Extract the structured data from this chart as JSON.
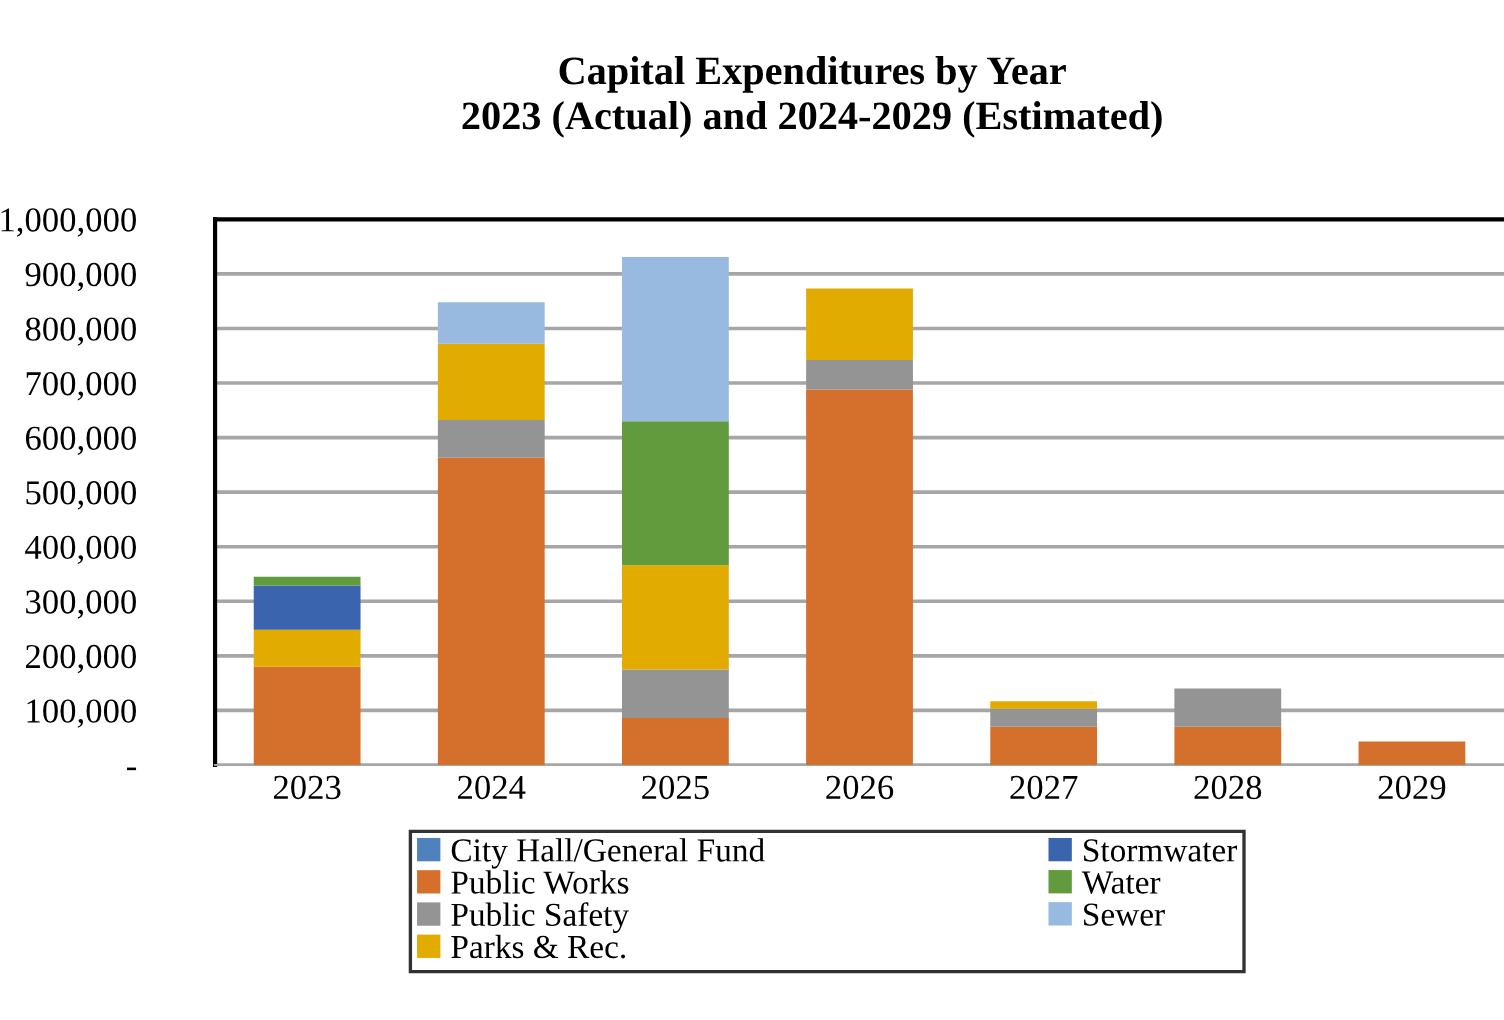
{
  "chart_data": {
    "type": "bar",
    "stacked": true,
    "title": "Capital Expenditures by Year\n2023 (Actual) and 2024-2029 (Estimated)",
    "categories": [
      "2023",
      "2024",
      "2025",
      "2026",
      "2027",
      "2028",
      "2029"
    ],
    "series": [
      {
        "name": "City Hall/General Fund",
        "color": "#4f81bd",
        "values": [
          0,
          0,
          0,
          0,
          0,
          0,
          0
        ]
      },
      {
        "name": "Public Works",
        "color": "#d4702c",
        "values": [
          180000,
          563000,
          86000,
          688000,
          70000,
          70000,
          43000
        ]
      },
      {
        "name": "Public Safety",
        "color": "#949494",
        "values": [
          0,
          69000,
          89000,
          54000,
          33000,
          70000,
          0
        ]
      },
      {
        "name": "Parks & Rec.",
        "color": "#e2ab00",
        "values": [
          68000,
          140000,
          191000,
          131000,
          14000,
          0,
          0
        ]
      },
      {
        "name": "Stormwater",
        "color": "#3a64ae",
        "values": [
          81000,
          0,
          0,
          0,
          0,
          0,
          0
        ]
      },
      {
        "name": "Water",
        "color": "#629a3e",
        "values": [
          16000,
          0,
          264000,
          0,
          0,
          0,
          0
        ]
      },
      {
        "name": "Sewer",
        "color": "#98b9e0",
        "values": [
          0,
          76000,
          301000,
          0,
          0,
          0,
          0
        ]
      }
    ],
    "ylim": [
      0,
      1000000
    ],
    "yticks": [
      {
        "value": 0,
        "label": "-"
      },
      {
        "value": 100000,
        "label": "100,000"
      },
      {
        "value": 200000,
        "label": "200,000"
      },
      {
        "value": 300000,
        "label": "300,000"
      },
      {
        "value": 400000,
        "label": "400,000"
      },
      {
        "value": 500000,
        "label": "500,000"
      },
      {
        "value": 600000,
        "label": "600,000"
      },
      {
        "value": 700000,
        "label": "700,000"
      },
      {
        "value": 800000,
        "label": "800,000"
      },
      {
        "value": 900000,
        "label": "900,000"
      },
      {
        "value": 1000000,
        "label": "1,000,000"
      }
    ],
    "grid": "y",
    "legend": "bottom"
  }
}
